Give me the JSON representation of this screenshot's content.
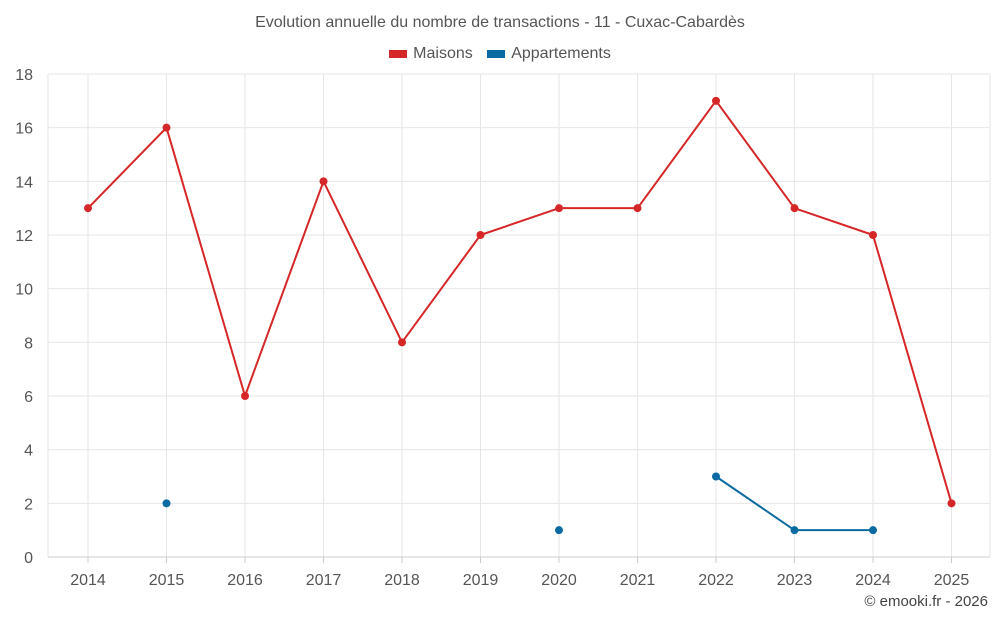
{
  "chart_data": {
    "type": "line",
    "title": "Evolution annuelle du nombre de transactions - 11 - Cuxac-Cabardès",
    "categories": [
      "2014",
      "2015",
      "2016",
      "2017",
      "2018",
      "2019",
      "2020",
      "2021",
      "2022",
      "2023",
      "2024",
      "2025"
    ],
    "series": [
      {
        "name": "Maisons",
        "color": "#d62728",
        "values": [
          13,
          16,
          6,
          14,
          8,
          12,
          13,
          13,
          17,
          13,
          12,
          2
        ]
      },
      {
        "name": "Appartements",
        "color": "#0a6aa1",
        "values": [
          null,
          2,
          null,
          null,
          null,
          null,
          1,
          null,
          3,
          1,
          1,
          null
        ]
      }
    ],
    "ylim": [
      0,
      18
    ],
    "yticks": [
      0,
      2,
      4,
      6,
      8,
      10,
      12,
      14,
      16,
      18
    ],
    "xlabel": "",
    "ylabel": "",
    "grid": true,
    "legend_position": "top-center"
  },
  "credit": "© emooki.fr - 2026"
}
